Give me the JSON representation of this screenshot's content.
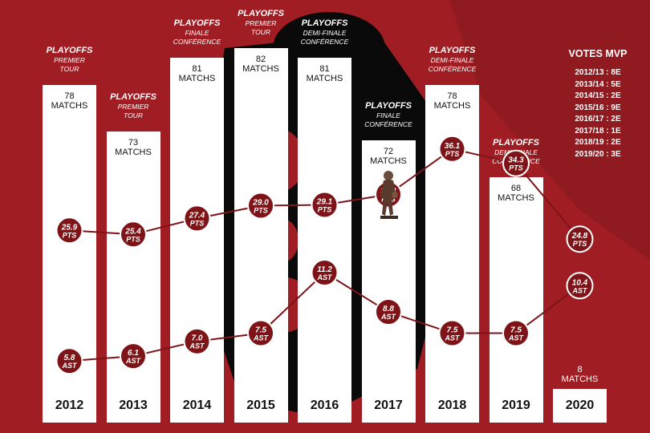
{
  "chart_data": {
    "type": "line",
    "categories": [
      "2012",
      "2013",
      "2014",
      "2015",
      "2016",
      "2017",
      "2018",
      "2019",
      "2020"
    ],
    "series": [
      {
        "name": "PTS",
        "values": [
          25.9,
          25.4,
          27.4,
          29.0,
          29.1,
          30.4,
          36.1,
          34.3,
          24.8
        ],
        "labels": [
          "25.9",
          "25.4",
          "27.4",
          "29.0",
          "29.1",
          "30.4",
          "36.1",
          "34.3",
          "24.8"
        ]
      },
      {
        "name": "AST",
        "values": [
          5.8,
          6.1,
          7.0,
          7.5,
          11.2,
          8.8,
          7.5,
          7.5,
          10.4
        ],
        "labels": [
          "5.8",
          "6.1",
          "7.0",
          "7.5",
          "11.2",
          "8.8",
          "7.5",
          "7.5",
          "10.4"
        ]
      }
    ],
    "matches": [
      {
        "count": "78",
        "unit": "MATCHS"
      },
      {
        "count": "73",
        "unit": "MATCHS"
      },
      {
        "count": "81",
        "unit": "MATCHS"
      },
      {
        "count": "82",
        "unit": "MATCHS"
      },
      {
        "count": "81",
        "unit": "MATCHS"
      },
      {
        "count": "72",
        "unit": "MATCHS"
      },
      {
        "count": "78",
        "unit": "MATCHS"
      },
      {
        "count": "68",
        "unit": "MATCHS"
      },
      {
        "count": "8",
        "unit": "MATCHS"
      }
    ],
    "games_played": [
      78,
      73,
      81,
      82,
      81,
      72,
      78,
      68,
      8
    ],
    "playoffs": [
      {
        "title": "PLAYOFFS",
        "round1": "PREMIER",
        "round2": "TOUR"
      },
      {
        "title": "PLAYOFFS",
        "round1": "PREMIER",
        "round2": "TOUR"
      },
      {
        "title": "PLAYOFFS",
        "round1": "FINALE",
        "round2": "CONFÉRENCE"
      },
      {
        "title": "PLAYOFFS",
        "round1": "PREMIER",
        "round2": "TOUR"
      },
      {
        "title": "PLAYOFFS",
        "round1": "DEMI-FINALE",
        "round2": "CONFÉRENCE"
      },
      {
        "title": "PLAYOFFS",
        "round1": "FINALE",
        "round2": "CONFÉRENCE"
      },
      {
        "title": "PLAYOFFS",
        "round1": "DEMI-FINALE",
        "round2": "CONFÉRENCE"
      },
      {
        "title": "PLAYOFFS",
        "round1": "DEMI-FINALE",
        "round2": "CONFÉRENCE"
      }
    ],
    "mvp_votes": {
      "title": "VOTES MVP",
      "entries": [
        "2012/13 : 8E",
        "2013/14 : 5E",
        "2014/15 : 2E",
        "2015/16 : 9E",
        "2016/17 : 2E",
        "2017/18 : 1E",
        "2018/19 : 2E",
        "2019/20 : 3E"
      ]
    },
    "legend": "none",
    "grid": false
  },
  "colors": {
    "background": "#a01d23",
    "marker": "#7e1418",
    "line": "#7e1418",
    "bar": "#ffffff",
    "text": "#ffffff"
  }
}
